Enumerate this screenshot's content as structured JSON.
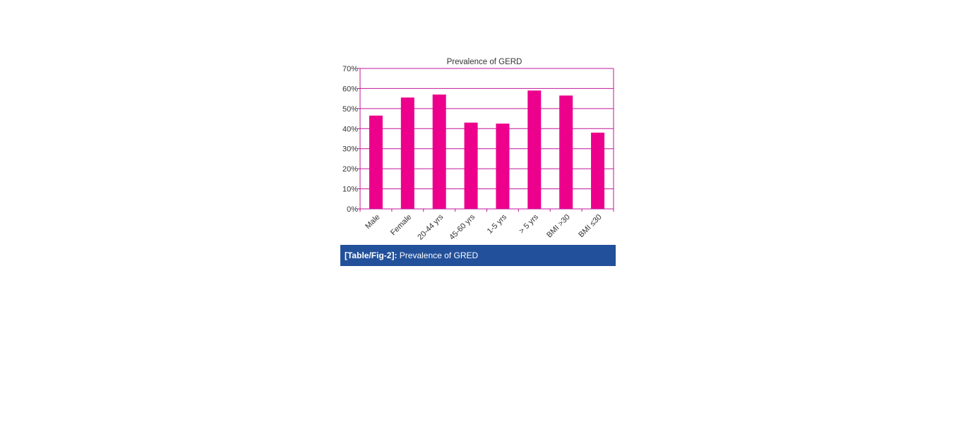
{
  "colors": {
    "bar": "#ec008c",
    "axis": "#c0179b",
    "grid": "#c0179b",
    "caption_background": "#22509a",
    "caption_text": "#ffffff"
  },
  "chart_data": {
    "type": "bar",
    "title": "Prevalence of GERD",
    "xlabel": "",
    "ylabel": "",
    "categories": [
      "Male",
      "Female",
      "20-44 yrs",
      "45-60 yrs",
      "1-5 yrs",
      "> 5 yrs",
      "BMI >30",
      "BMI ≤30"
    ],
    "values": [
      46.5,
      55.5,
      57,
      43,
      42.5,
      59,
      56.5,
      38
    ],
    "ylim": [
      0,
      70
    ],
    "yticks": [
      "0%",
      "10%",
      "20%",
      "30%",
      "40%",
      "50%",
      "60%",
      "70%"
    ],
    "grid": true,
    "legend": "none"
  },
  "caption": {
    "label": "[Table/Fig-2]:",
    "text": " Prevalence of GRED"
  }
}
